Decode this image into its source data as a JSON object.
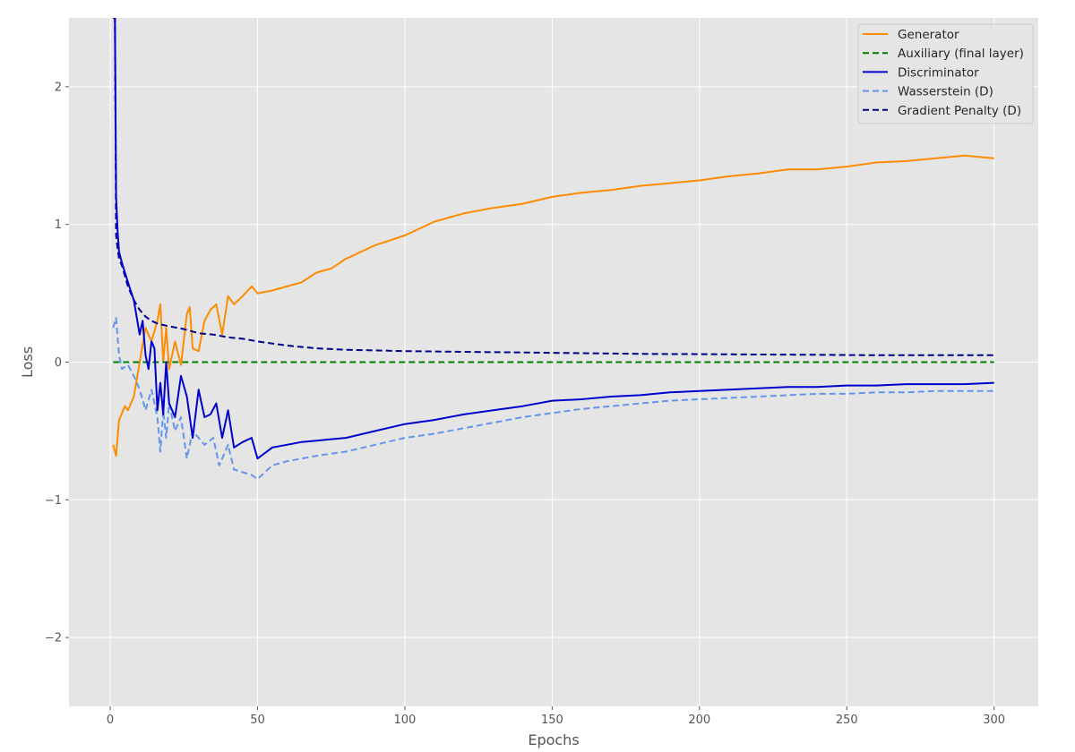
{
  "chart_data": {
    "type": "line",
    "title": "",
    "xlabel": "Epochs",
    "ylabel": "Loss",
    "xlim": [
      -14,
      315
    ],
    "ylim": [
      -2.5,
      2.5
    ],
    "xticks": [
      0,
      50,
      100,
      150,
      200,
      250,
      300
    ],
    "yticks": [
      -2,
      -1,
      0,
      1,
      2
    ],
    "ytick_labels": [
      "−2",
      "−1",
      "0",
      "1",
      "2"
    ],
    "grid": true,
    "background": "#e5e5e5",
    "legend_position": "top-right",
    "series": [
      {
        "name": "Generator",
        "color": "#ff8c00",
        "dash": "solid",
        "x": [
          1,
          2,
          3,
          5,
          6,
          8,
          10,
          12,
          14,
          16,
          17,
          18,
          19,
          20,
          22,
          24,
          26,
          27,
          28,
          30,
          32,
          34,
          36,
          38,
          40,
          42,
          45,
          48,
          50,
          55,
          60,
          65,
          70,
          75,
          80,
          90,
          100,
          110,
          120,
          130,
          140,
          150,
          160,
          170,
          180,
          190,
          200,
          210,
          220,
          230,
          240,
          250,
          260,
          270,
          280,
          290,
          300
        ],
        "values": [
          -0.6,
          -0.68,
          -0.42,
          -0.32,
          -0.35,
          -0.25,
          0.0,
          0.25,
          0.15,
          0.3,
          0.42,
          0.0,
          0.25,
          -0.05,
          0.15,
          -0.02,
          0.35,
          0.4,
          0.1,
          0.08,
          0.3,
          0.38,
          0.42,
          0.2,
          0.48,
          0.42,
          0.48,
          0.55,
          0.5,
          0.52,
          0.55,
          0.58,
          0.65,
          0.68,
          0.75,
          0.85,
          0.92,
          1.02,
          1.08,
          1.12,
          1.15,
          1.2,
          1.23,
          1.25,
          1.28,
          1.3,
          1.32,
          1.35,
          1.37,
          1.4,
          1.4,
          1.42,
          1.45,
          1.46,
          1.48,
          1.5,
          1.48
        ]
      },
      {
        "name": "Auxiliary (final layer)",
        "color": "#008000",
        "dash": "dashed",
        "x": [
          1,
          300
        ],
        "values": [
          0.0,
          0.0
        ]
      },
      {
        "name": "Discriminator",
        "color": "#0000cd",
        "dash": "solid",
        "x": [
          1,
          1.3,
          1.6,
          2,
          2.5,
          3,
          4,
          5,
          6,
          8,
          10,
          11,
          12,
          13,
          14,
          15,
          16,
          17,
          18,
          19,
          20,
          22,
          24,
          26,
          28,
          30,
          32,
          34,
          36,
          38,
          40,
          42,
          45,
          48,
          50,
          55,
          60,
          65,
          70,
          75,
          80,
          90,
          100,
          110,
          120,
          130,
          140,
          150,
          160,
          170,
          180,
          190,
          200,
          210,
          220,
          230,
          240,
          250,
          260,
          270,
          280,
          290,
          300
        ],
        "values": [
          2.5,
          2.5,
          2.5,
          1.2,
          0.95,
          0.8,
          0.72,
          0.65,
          0.58,
          0.45,
          0.2,
          0.3,
          0.05,
          -0.05,
          0.15,
          0.1,
          -0.35,
          -0.15,
          -0.38,
          0.0,
          -0.3,
          -0.4,
          -0.1,
          -0.25,
          -0.55,
          -0.2,
          -0.4,
          -0.38,
          -0.3,
          -0.55,
          -0.35,
          -0.62,
          -0.58,
          -0.55,
          -0.7,
          -0.62,
          -0.6,
          -0.58,
          -0.57,
          -0.56,
          -0.55,
          -0.5,
          -0.45,
          -0.42,
          -0.38,
          -0.35,
          -0.32,
          -0.28,
          -0.27,
          -0.25,
          -0.24,
          -0.22,
          -0.21,
          -0.2,
          -0.19,
          -0.18,
          -0.18,
          -0.17,
          -0.17,
          -0.16,
          -0.16,
          -0.16,
          -0.15
        ]
      },
      {
        "name": "Wasserstein (D)",
        "color": "#6495ed",
        "dash": "dashed",
        "x": [
          1,
          2,
          3,
          4,
          6,
          8,
          10,
          12,
          14,
          16,
          17,
          18,
          19,
          20,
          22,
          24,
          26,
          28,
          30,
          32,
          35,
          37,
          40,
          42,
          45,
          48,
          50,
          55,
          60,
          65,
          70,
          80,
          90,
          100,
          110,
          120,
          130,
          140,
          150,
          160,
          170,
          180,
          190,
          200,
          210,
          220,
          230,
          240,
          250,
          260,
          270,
          280,
          290,
          300
        ],
        "values": [
          0.25,
          0.32,
          0.05,
          -0.05,
          -0.02,
          -0.1,
          -0.2,
          -0.35,
          -0.2,
          -0.4,
          -0.65,
          -0.35,
          -0.55,
          -0.3,
          -0.5,
          -0.4,
          -0.7,
          -0.5,
          -0.55,
          -0.6,
          -0.55,
          -0.75,
          -0.6,
          -0.78,
          -0.8,
          -0.82,
          -0.85,
          -0.75,
          -0.72,
          -0.7,
          -0.68,
          -0.65,
          -0.6,
          -0.55,
          -0.52,
          -0.48,
          -0.44,
          -0.4,
          -0.37,
          -0.34,
          -0.32,
          -0.3,
          -0.28,
          -0.27,
          -0.26,
          -0.25,
          -0.24,
          -0.23,
          -0.23,
          -0.22,
          -0.22,
          -0.21,
          -0.21,
          -0.21
        ]
      },
      {
        "name": "Gradient Penalty (D)",
        "color": "#00008b",
        "dash": "dashed",
        "x": [
          1,
          1.3,
          1.6,
          2,
          2.5,
          3,
          4,
          6,
          8,
          10,
          12,
          14,
          16,
          18,
          20,
          25,
          30,
          35,
          40,
          45,
          50,
          60,
          70,
          80,
          90,
          100,
          120,
          140,
          160,
          180,
          200,
          220,
          240,
          260,
          280,
          300
        ],
        "values": [
          2.5,
          2.5,
          2.5,
          0.92,
          0.82,
          0.75,
          0.7,
          0.55,
          0.45,
          0.38,
          0.33,
          0.3,
          0.28,
          0.27,
          0.26,
          0.24,
          0.21,
          0.2,
          0.18,
          0.17,
          0.15,
          0.12,
          0.1,
          0.09,
          0.085,
          0.08,
          0.075,
          0.07,
          0.065,
          0.06,
          0.058,
          0.055,
          0.053,
          0.05,
          0.05,
          0.05
        ]
      }
    ]
  }
}
